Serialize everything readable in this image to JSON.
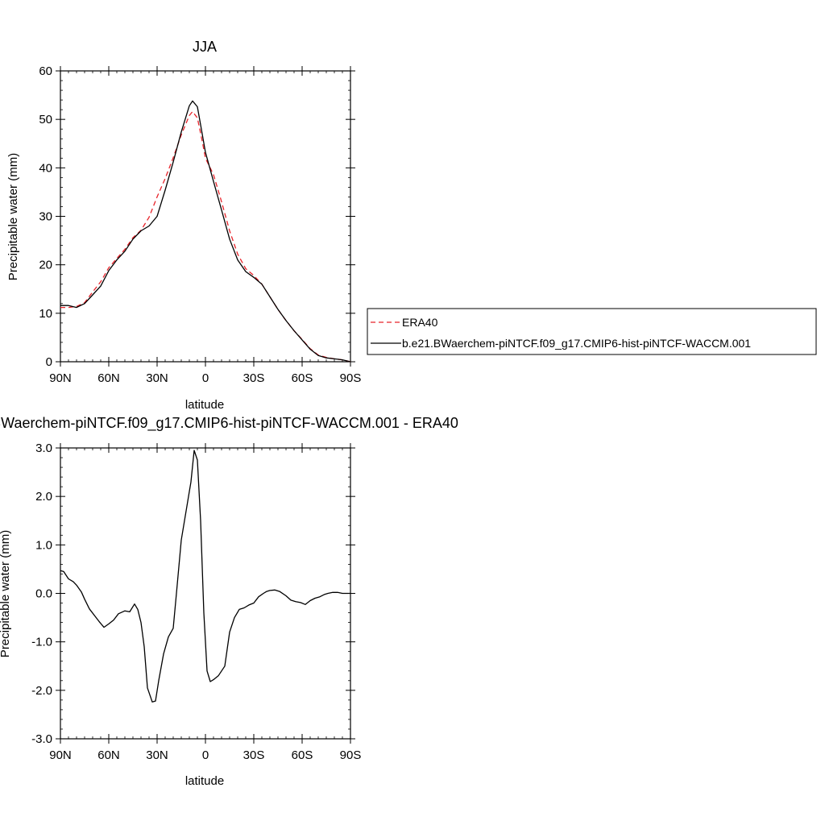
{
  "chart_data": [
    {
      "type": "line",
      "title": "JJA",
      "xlabel": "latitude",
      "ylabel": "Precipitable water (mm)",
      "x_tick_labels": [
        "90N",
        "60N",
        "30N",
        "0",
        "30S",
        "60S",
        "90S"
      ],
      "x_tick_values": [
        90,
        60,
        30,
        0,
        -30,
        -60,
        -90
      ],
      "xlim": [
        90,
        -90
      ],
      "ylim": [
        0,
        60
      ],
      "y_ticks": [
        0,
        10,
        20,
        30,
        40,
        50,
        60
      ],
      "y_tick_labels": [
        "0",
        "10",
        "20",
        "30",
        "40",
        "50",
        "60"
      ],
      "legend": {
        "position": "right",
        "entries": [
          "ERA40",
          "b.e21.BWaerchem-piNTCF.f09_g17.CMIP6-hist-piNTCF-WACCM.001"
        ]
      },
      "series": [
        {
          "name": "ERA40",
          "color": "#e8232a",
          "dash": "dashed",
          "x": [
            90,
            85,
            80,
            75,
            70,
            65,
            60,
            55,
            50,
            45,
            40,
            35,
            30,
            25,
            20,
            15,
            10,
            8,
            5,
            2,
            0,
            -5,
            -10,
            -15,
            -20,
            -25,
            -30,
            -35,
            -40,
            -45,
            -50,
            -55,
            -60,
            -65,
            -70,
            -75,
            -80,
            -85,
            -90
          ],
          "values": [
            11.2,
            11.2,
            11.4,
            12.2,
            14.4,
            16.5,
            19.4,
            21.3,
            23.2,
            25.6,
            27.1,
            29.8,
            34.0,
            37.8,
            42.1,
            46.8,
            50.8,
            51.6,
            50.3,
            45.5,
            42.0,
            38.6,
            33.0,
            27.0,
            22.2,
            19.2,
            17.8,
            16.0,
            13.4,
            10.8,
            8.5,
            6.4,
            4.6,
            2.7,
            1.4,
            0.9,
            0.6,
            0.4,
            0.0
          ]
        },
        {
          "name": "b.e21.BWaerchem-piNTCF.f09_g17.CMIP6-hist-piNTCF-WACCM.001",
          "color": "#000000",
          "dash": "solid",
          "x": [
            90,
            85,
            80,
            75,
            70,
            65,
            60,
            55,
            50,
            45,
            40,
            35,
            30,
            25,
            20,
            15,
            10,
            8,
            5,
            2,
            0,
            -5,
            -10,
            -15,
            -20,
            -25,
            -30,
            -35,
            -40,
            -45,
            -50,
            -55,
            -60,
            -65,
            -70,
            -75,
            -80,
            -85,
            -90
          ],
          "values": [
            11.6,
            11.6,
            11.2,
            12.0,
            13.8,
            15.6,
            18.8,
            21.0,
            22.8,
            25.3,
            27.0,
            28.0,
            30.0,
            35.4,
            41.2,
            47.4,
            52.8,
            53.8,
            52.6,
            47.0,
            43.2,
            37.2,
            31.3,
            25.3,
            21.0,
            18.6,
            17.4,
            16.0,
            13.4,
            10.8,
            8.5,
            6.4,
            4.5,
            2.6,
            1.3,
            0.8,
            0.6,
            0.4,
            0.0
          ]
        }
      ]
    },
    {
      "type": "line",
      "title": "b.e21.BWaerchem-piNTCF.f09_g17.CMIP6-hist-piNTCF-WACCM.001 - ERA40",
      "xlabel": "latitude",
      "ylabel": "Precipitable water (mm)",
      "x_tick_labels": [
        "90N",
        "60N",
        "30N",
        "0",
        "30S",
        "60S",
        "90S"
      ],
      "x_tick_values": [
        90,
        60,
        30,
        0,
        -30,
        -60,
        -90
      ],
      "xlim": [
        90,
        -90
      ],
      "ylim": [
        -3.0,
        3.0
      ],
      "y_ticks": [
        -3,
        -2,
        -1,
        0,
        1,
        2,
        3
      ],
      "y_tick_labels": [
        "-3.0",
        "-2.0",
        "-1.0",
        "0.0",
        "1.0",
        "2.0",
        "3.0"
      ],
      "series": [
        {
          "color": "#000000",
          "dash": "solid",
          "x": [
            90,
            88,
            85,
            82,
            80,
            77,
            75,
            72,
            69,
            66,
            63,
            60,
            57,
            54,
            50,
            47,
            44,
            42,
            40,
            38,
            36,
            33,
            31,
            29,
            26,
            23,
            20,
            18,
            15,
            12,
            9,
            7,
            5,
            3,
            1,
            -1,
            -3,
            -5,
            -8,
            -12,
            -15,
            -18,
            -21,
            -24,
            -27,
            -30,
            -33,
            -36,
            -38,
            -40,
            -43,
            -46,
            -50,
            -53,
            -56,
            -59,
            -62,
            -65,
            -68,
            -71,
            -74,
            -76,
            -79,
            -82,
            -85,
            -88,
            -90
          ],
          "values": [
            0.47,
            0.45,
            0.3,
            0.24,
            0.17,
            0.03,
            -0.12,
            -0.32,
            -0.45,
            -0.58,
            -0.7,
            -0.63,
            -0.55,
            -0.42,
            -0.36,
            -0.38,
            -0.22,
            -0.33,
            -0.6,
            -1.1,
            -1.95,
            -2.24,
            -2.22,
            -1.8,
            -1.25,
            -0.9,
            -0.72,
            0.0,
            1.1,
            1.7,
            2.3,
            2.95,
            2.75,
            1.5,
            -0.4,
            -1.6,
            -1.82,
            -1.78,
            -1.7,
            -1.5,
            -0.8,
            -0.5,
            -0.33,
            -0.3,
            -0.24,
            -0.2,
            -0.07,
            0.0,
            0.04,
            0.06,
            0.07,
            0.04,
            -0.05,
            -0.14,
            -0.17,
            -0.19,
            -0.23,
            -0.15,
            -0.1,
            -0.07,
            -0.02,
            0.0,
            0.02,
            0.02,
            0.0,
            0.0,
            0.0
          ]
        }
      ]
    }
  ]
}
